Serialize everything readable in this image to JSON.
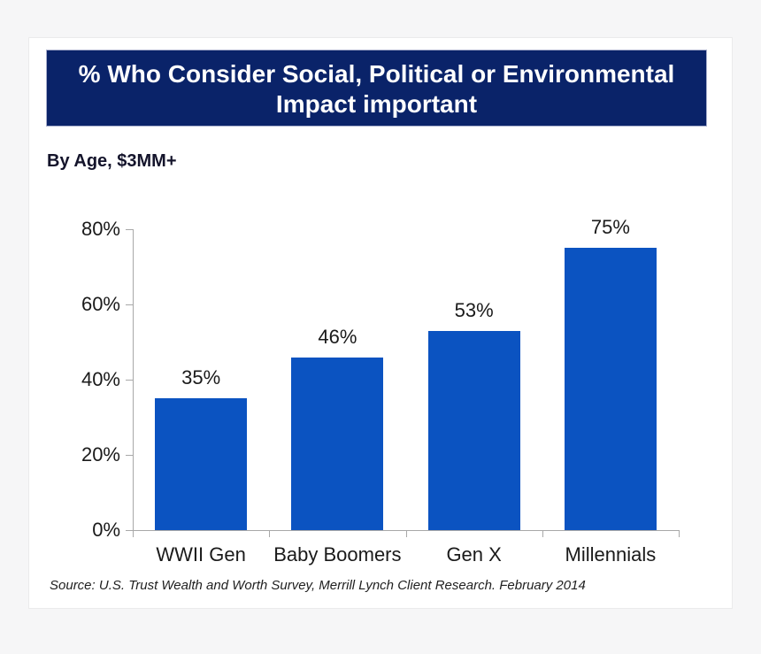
{
  "window": {
    "background": "#f6f6f7",
    "card_background": "#ffffff"
  },
  "header": {
    "title_line1": "% Who Consider Social, Political or Environmental",
    "title_line2": "Impact important",
    "background": "#0a2369",
    "text_color": "#ffffff"
  },
  "subtitle": "By Age, $3MM+",
  "source_note": "Source: U.S. Trust Wealth and Worth Survey, Merrill Lynch Client Research. February 2014",
  "chart_data": {
    "type": "bar",
    "title": "% Who Consider Social, Political or Environmental Impact important",
    "subtitle": "By Age, $3MM+",
    "categories": [
      "WWII Gen",
      "Baby Boomers",
      "Gen X",
      "Millennials"
    ],
    "values": [
      35,
      46,
      53,
      75
    ],
    "data_labels": [
      "35%",
      "46%",
      "53%",
      "75%"
    ],
    "xlabel": "",
    "ylabel": "",
    "ylim": [
      0,
      80
    ],
    "yticks": [
      0,
      20,
      40,
      60,
      80
    ],
    "ytick_labels": [
      "0%",
      "20%",
      "40%",
      "60%",
      "80%"
    ],
    "grid": false,
    "legend": false,
    "bar_color": "#0b53c1",
    "axis_color": "#a8a8a8",
    "label_color": "#1a1a1a"
  }
}
